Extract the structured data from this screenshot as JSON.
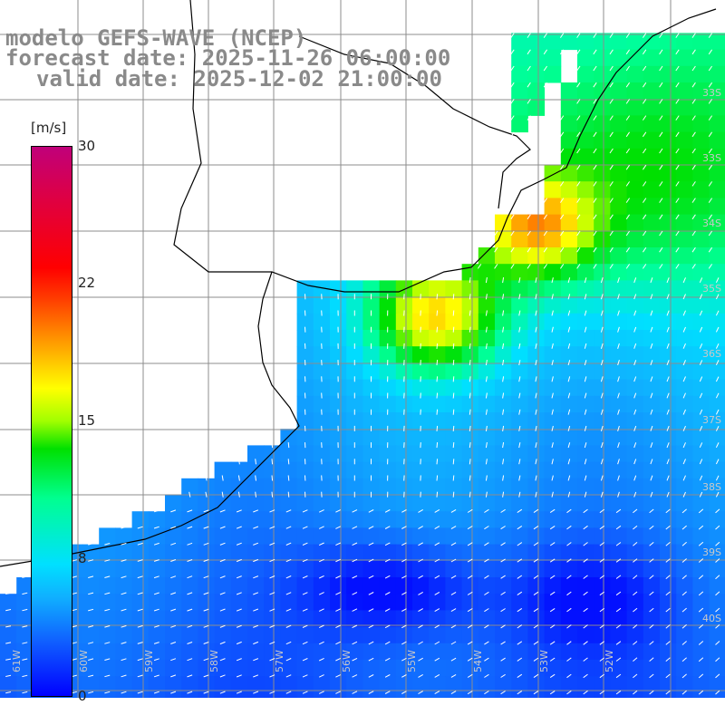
{
  "title": {
    "line1": "modelo GEFS-WAVE (NCEP)",
    "line2": "forecast date: 2025-11-26 06:00:00",
    "line3": "valid date: 2025-12-02 21:00:00"
  },
  "colorbar": {
    "unit": "[m/s]",
    "ticks": [
      "30",
      "22",
      "15",
      "8",
      "0"
    ],
    "tick_values": [
      30,
      22,
      15,
      8,
      0
    ],
    "min": 0,
    "max": 30
  },
  "lat_labels": [
    "33S",
    "33S",
    "34S",
    "35S",
    "36S",
    "37S",
    "38S",
    "39S",
    "40S"
  ],
  "lon_labels": [
    "61W",
    "60W",
    "59W",
    "58W",
    "57W",
    "56W",
    "55W",
    "54W",
    "53W",
    "52W"
  ],
  "colors": {
    "land": "#ffffff",
    "grid": "#8c8c8c",
    "coast": "#000000",
    "arrow": "#ffffff",
    "title": "#8a8a8a"
  }
}
